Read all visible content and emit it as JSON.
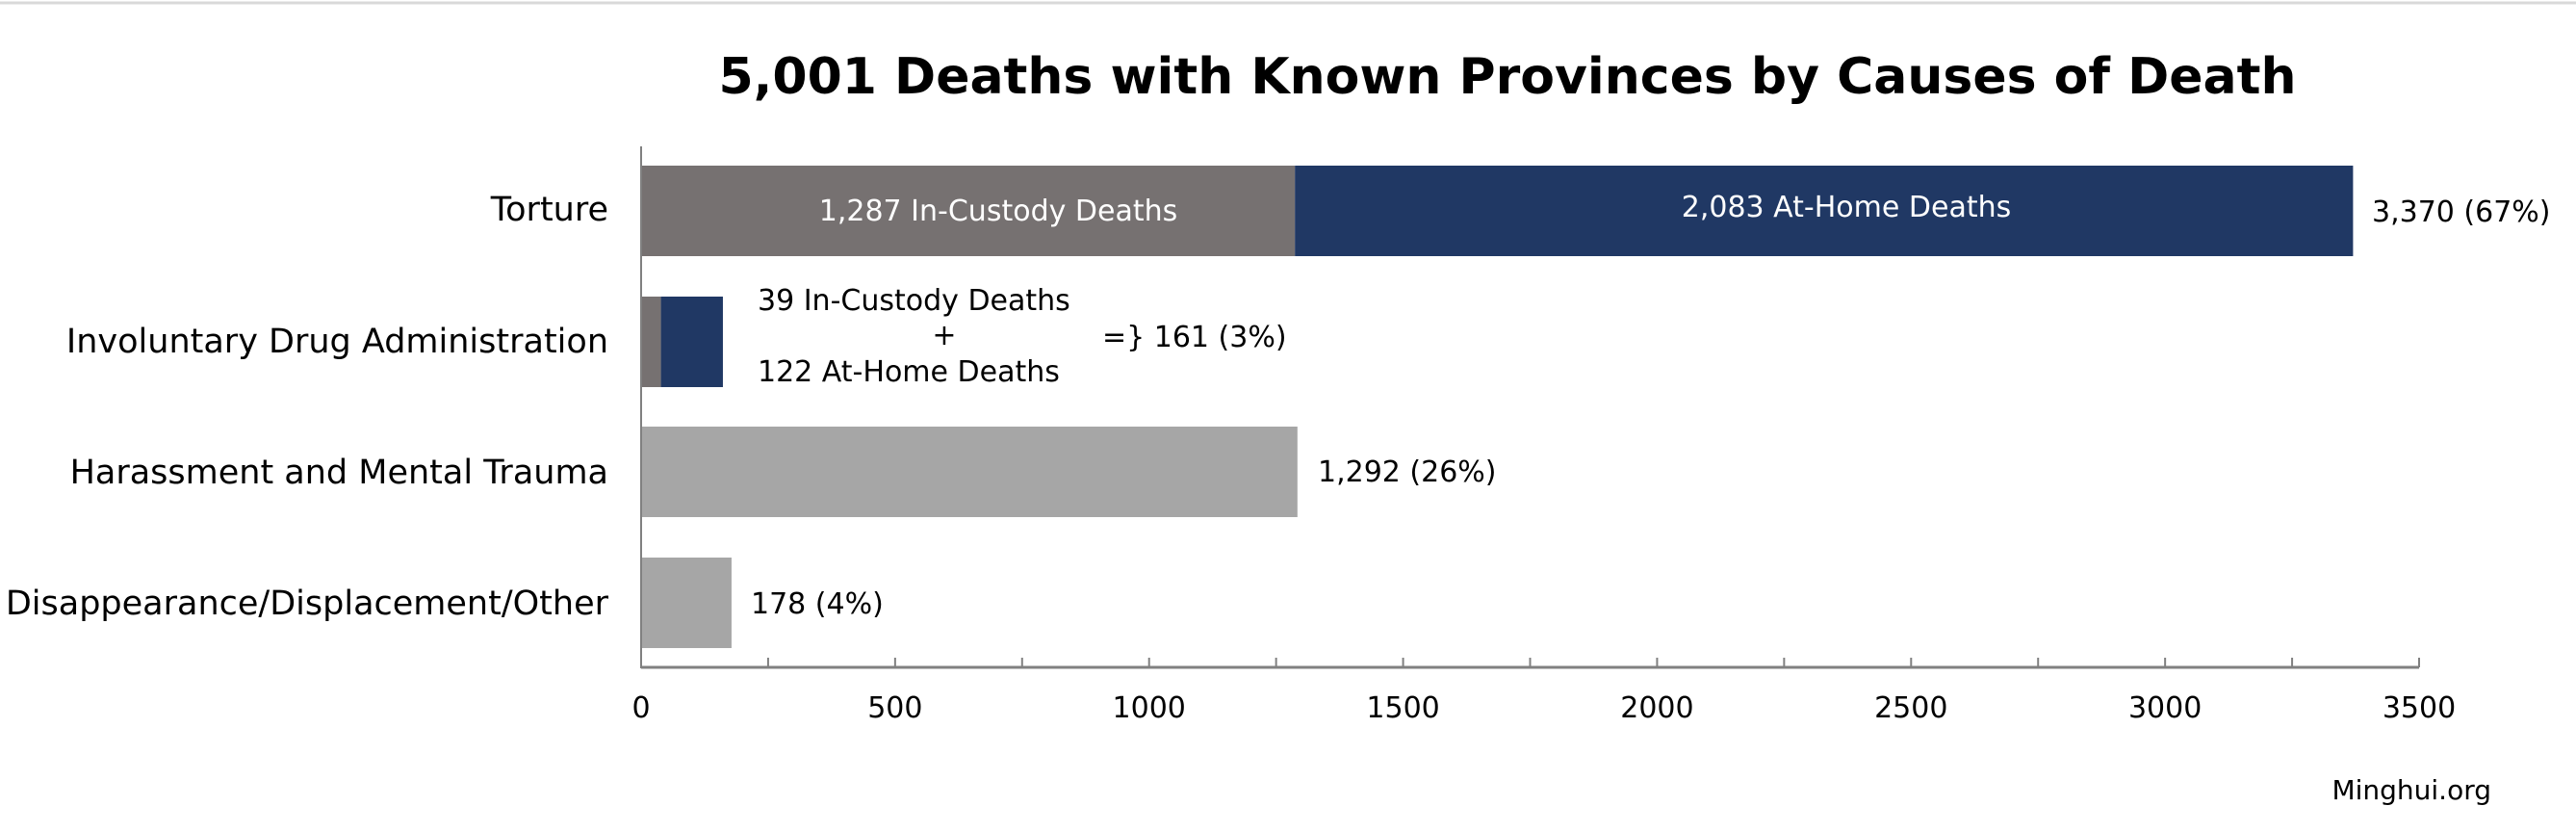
{
  "source": "Minghui.org",
  "chart_data": {
    "type": "bar",
    "orientation": "horizontal",
    "stacked": true,
    "title": "5,001 Deaths with Known Provinces by Causes of Death",
    "xlabel": "",
    "ylabel": "",
    "xlim": [
      0,
      3500
    ],
    "x_ticks": [
      "0",
      "500",
      "1000",
      "1500",
      "2000",
      "2500",
      "3000",
      "3500"
    ],
    "grid": false,
    "legend": "none",
    "categories": [
      "Torture",
      "Involuntary Drug Administration",
      "Harassment and Mental Trauma",
      "Disappearance/Displacement/Other"
    ],
    "series": [
      {
        "values": [
          1287,
          39,
          0,
          0
        ],
        "color": "#767171"
      },
      {
        "values": [
          2083,
          122,
          0,
          0
        ],
        "color": "#203864"
      },
      {
        "values": [
          0,
          0,
          1292,
          178
        ],
        "color": "#a6a6a6"
      }
    ],
    "totals": [
      3370,
      161,
      1292,
      178
    ],
    "total_labels": [
      "3,370 (67%)",
      "161 (3%)",
      "1,292 (26%)",
      "178 (4%)"
    ],
    "segment_labels": {
      "torture_in_custody": "1,287 In-Custody Deaths",
      "torture_at_home": "2,083 At-Home Deaths",
      "drug_in_custody": "39 In-Custody Deaths",
      "drug_plus": "+",
      "drug_at_home": "122 At-Home Deaths",
      "drug_total": "=} 161 (3%)"
    }
  }
}
